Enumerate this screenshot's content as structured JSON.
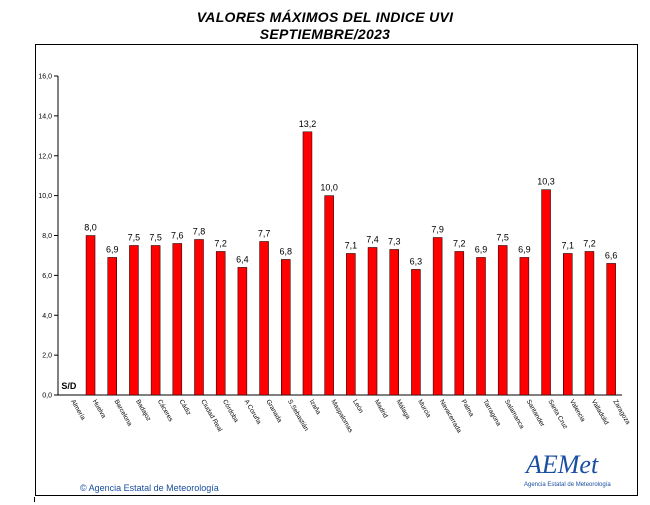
{
  "page": {
    "title_line1": "VALORES MÁXIMOS DEL INDICE UVI",
    "title_line2": "SEPTIEMBRE/2023",
    "copyright": "© Agencia Estatal de Meteorología",
    "logo_text": "AEMet",
    "logo_subtext": "Agencia Estatal de Meteorología"
  },
  "colors": {
    "bar": "#ff0000",
    "bar_edge": "#000000",
    "axis": "#000000",
    "grid": "#000000",
    "brand": "#1a4ea0"
  },
  "chart_data": {
    "type": "bar",
    "title": "VALORES MÁXIMOS DEL INDICE UVI",
    "subtitle": "SEPTIEMBRE/2023",
    "xlabel": "",
    "ylabel": "",
    "ylim": [
      0,
      16
    ],
    "yticks": [
      "0,0",
      "2,0",
      "4,0",
      "6,0",
      "8,0",
      "10,0",
      "12,0",
      "14,0",
      "16,0"
    ],
    "grid": "none",
    "categories": [
      "Almería",
      "Huelva",
      "Barcelona",
      "Badajoz",
      "Cáceres",
      "Cádiz",
      "Ciudad Real",
      "Córdoba",
      "A Coruña",
      "Granada",
      "S.Sebastián",
      "Izaña",
      "Maspalomas",
      "León",
      "Madrid",
      "Málaga",
      "Murcia",
      "Navacerrada",
      "Palma",
      "Tarragona",
      "Salamanca",
      "Santander",
      "Santa Cruz",
      "Valencia",
      "Valladolid",
      "Zaragoza"
    ],
    "values": [
      null,
      8.0,
      6.9,
      7.5,
      7.5,
      7.6,
      7.8,
      7.2,
      6.4,
      7.7,
      6.8,
      13.2,
      10.0,
      7.1,
      7.4,
      7.3,
      6.3,
      7.9,
      7.2,
      6.9,
      7.5,
      6.9,
      10.3,
      7.1,
      7.2,
      6.6
    ],
    "value_labels": [
      "S/D",
      "8,0",
      "6,9",
      "7,5",
      "7,5",
      "7,6",
      "7,8",
      "7,2",
      "6,4",
      "7,7",
      "6,8",
      "13,2",
      "10,0",
      "7,1",
      "7,4",
      "7,3",
      "6,3",
      "7,9",
      "7,2",
      "6,9",
      "7,5",
      "6,9",
      "10,3",
      "7,1",
      "7,2",
      "6,6"
    ]
  }
}
